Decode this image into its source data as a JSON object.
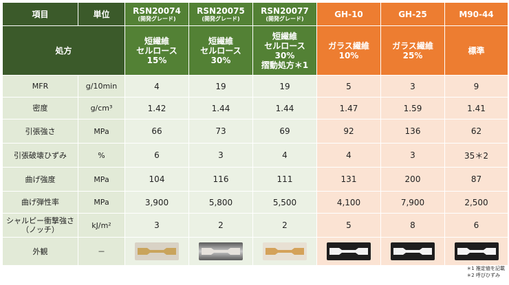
{
  "header": {
    "item_label": "項目",
    "unit_label": "単位",
    "columns": [
      {
        "name": "RSN20074",
        "sub": "(開発グレード)"
      },
      {
        "name": "RSN20075",
        "sub": "(開発グレード)"
      },
      {
        "name": "RSN20077",
        "sub": "(開発グレード)"
      },
      {
        "name": "GH-10",
        "sub": ""
      },
      {
        "name": "GH-25",
        "sub": ""
      },
      {
        "name": "M90-44",
        "sub": ""
      }
    ]
  },
  "formulation": {
    "label": "処方",
    "cells": [
      {
        "l1": "短繊維",
        "l2": "セルロース",
        "l3": "15%",
        "l4": ""
      },
      {
        "l1": "短繊維",
        "l2": "セルロース",
        "l3": "30%",
        "l4": ""
      },
      {
        "l1": "短繊維",
        "l2": "セルロース",
        "l3": "30%",
        "l4": "摺動処方＊1"
      },
      {
        "l1": "ガラス繊維",
        "l2": "10%",
        "l3": "",
        "l4": ""
      },
      {
        "l1": "ガラス繊維",
        "l2": "25%",
        "l3": "",
        "l4": ""
      },
      {
        "l1": "標準",
        "l2": "",
        "l3": "",
        "l4": ""
      }
    ]
  },
  "rows": [
    {
      "name": "MFR",
      "name2": "",
      "unit": "g/10min",
      "values": [
        "4",
        "19",
        "19",
        "5",
        "3",
        "9"
      ]
    },
    {
      "name": "密度",
      "name2": "",
      "unit": "g/cm³",
      "values": [
        "1.42",
        "1.44",
        "1.44",
        "1.47",
        "1.59",
        "1.41"
      ]
    },
    {
      "name": "引張強さ",
      "name2": "",
      "unit": "MPa",
      "values": [
        "66",
        "73",
        "69",
        "92",
        "136",
        "62"
      ]
    },
    {
      "name": "引張破壊ひずみ",
      "name2": "",
      "unit": "%",
      "values": [
        "6",
        "3",
        "4",
        "4",
        "3",
        "35＊2"
      ]
    },
    {
      "name": "曲げ強度",
      "name2": "",
      "unit": "MPa",
      "values": [
        "104",
        "116",
        "111",
        "131",
        "200",
        "87"
      ]
    },
    {
      "name": "曲げ弾性率",
      "name2": "",
      "unit": "MPa",
      "values": [
        "3,900",
        "5,800",
        "5,500",
        "4,100",
        "7,900",
        "2,500"
      ]
    },
    {
      "name": "シャルピー衝撃強さ",
      "name2": "（ノッチ）",
      "unit": "kJ/m²",
      "values": [
        "3",
        "2",
        "2",
        "5",
        "8",
        "6"
      ]
    }
  ],
  "appearance": {
    "label": "外観",
    "unit": "－"
  },
  "sample_colors": [
    "#c9a45c",
    "#e6e2dc",
    "#d4a25a",
    "#f2f2f2",
    "#f2f2f2",
    "#f4f4f4"
  ],
  "footnotes": {
    "n1": "＊1 推定値を記載",
    "n2": "＊2 呼びひずみ"
  }
}
